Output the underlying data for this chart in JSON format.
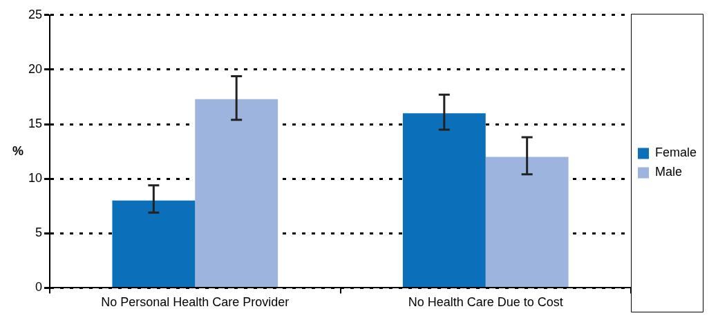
{
  "chart_data": {
    "type": "bar",
    "ylabel": "%",
    "categories": [
      "No Personal Health Care Provider",
      "No Health Care Due to Cost"
    ],
    "series": [
      {
        "name": "Female",
        "color": "#0b6fba",
        "values": [
          8.0,
          16.0
        ],
        "errors": [
          [
            6.9,
            9.4
          ],
          [
            14.5,
            17.7
          ]
        ]
      },
      {
        "name": "Male",
        "color": "#9db4de",
        "values": [
          17.3,
          12.0
        ],
        "errors": [
          [
            15.4,
            19.4
          ],
          [
            10.4,
            13.8
          ]
        ]
      }
    ],
    "ylim": [
      0,
      25
    ],
    "yticks": [
      0,
      5,
      10,
      15,
      20,
      25
    ],
    "grid": "y",
    "legend": "right"
  }
}
